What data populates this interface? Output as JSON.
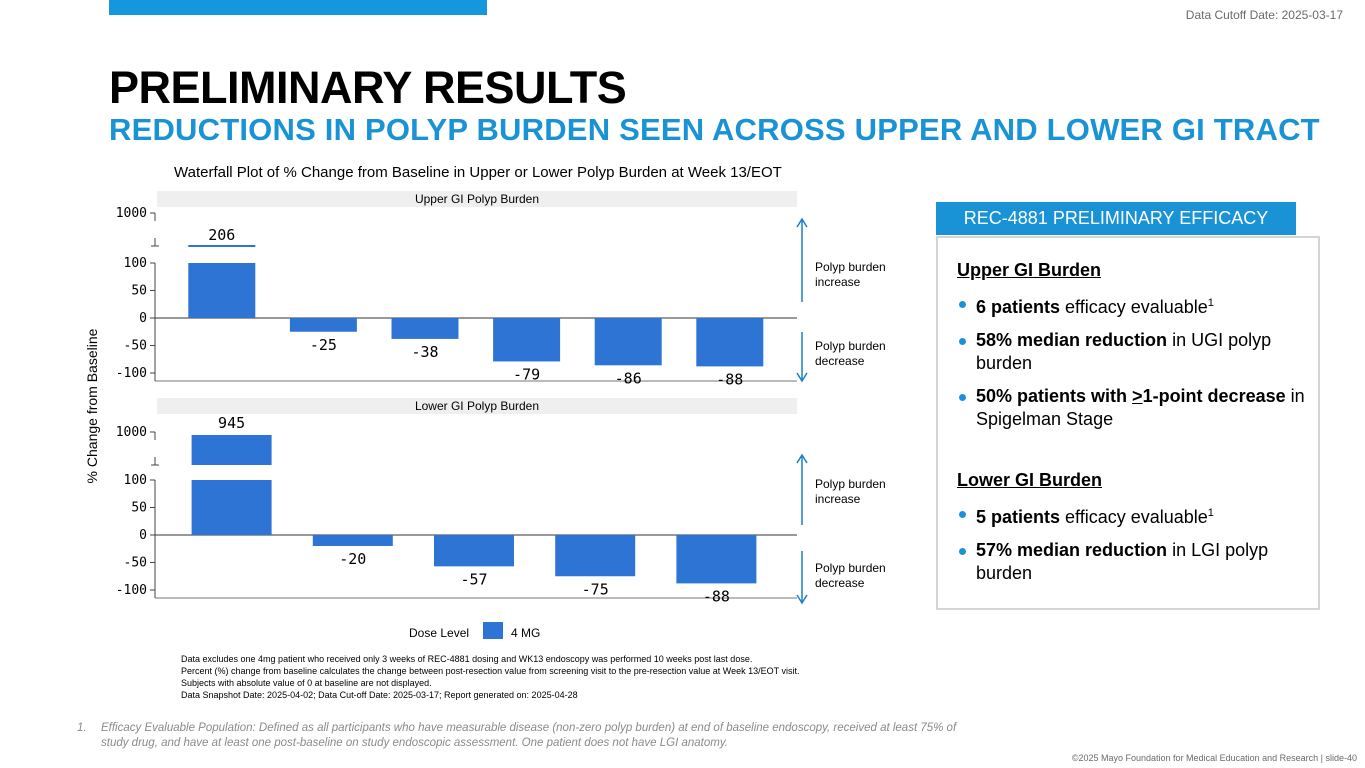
{
  "header": {
    "cutoff": "Data Cutoff Date: 2025-03-17",
    "title": "PRELIMINARY RESULTS",
    "subtitle": "REDUCTIONS IN POLYP BURDEN SEEN ACROSS UPPER AND LOWER GI TRACT"
  },
  "colors": {
    "accent": "#1a93d6",
    "bar": "#2e74d4",
    "arrow": "#1a7fc6"
  },
  "chart_data": [
    {
      "type": "bar",
      "title": "Waterfall Plot of % Change from Baseline in Upper or Lower Polyp Burden at Week 13/EOT",
      "panel": "Upper GI Polyp Burden",
      "ylabel": "% Change from Baseline",
      "yticks": [
        1000,
        100,
        50,
        0,
        -50,
        -100
      ],
      "ylim": [
        -100,
        1000
      ],
      "axis_break": [
        100,
        1000
      ],
      "values": [
        206,
        -25,
        -38,
        -79,
        -86,
        -88
      ],
      "labels": [
        "206",
        "-25",
        "-38",
        "-79",
        "-86",
        "-88"
      ],
      "series_name": "4 MG"
    },
    {
      "type": "bar",
      "panel": "Lower GI Polyp Burden",
      "ylabel": "% Change from Baseline",
      "yticks": [
        1000,
        100,
        50,
        0,
        -50,
        -100
      ],
      "ylim": [
        -100,
        1000
      ],
      "axis_break": [
        100,
        1000
      ],
      "values": [
        945,
        -20,
        -57,
        -75,
        -88
      ],
      "labels": [
        "945",
        "-20",
        "-57",
        "-75",
        "-88"
      ],
      "series_name": "4 MG"
    }
  ],
  "chart_text": {
    "ylabel": "% Change from Baseline",
    "increase_line1": "Polyp burden",
    "increase_line2": "increase",
    "decrease_line1": "Polyp burden",
    "decrease_line2": "decrease",
    "legend_title": "Dose Level",
    "legend_label": "4 MG",
    "tick_labels": [
      "1000",
      "100",
      "50",
      "0",
      "-50",
      "-100"
    ]
  },
  "notes": [
    "Data excludes one 4mg patient who received only 3 weeks of REC-4881 dosing and WK13 endoscopy was performed 10 weeks post last dose.",
    "Percent (%) change from baseline calculates the change between post-resection value from screening visit to the pre-resection value at Week 13/EOT visit. Subjects with absolute value of 0 at baseline are not displayed.",
    "Data Snapshot Date: 2025-04-02; Data Cut-off Date: 2025-03-17; Report generated on: 2025-04-28"
  ],
  "efficacy": {
    "header": "REC-4881 PRELIMINARY EFFICACY",
    "upper": {
      "title": "Upper GI Burden",
      "item1_bold": "6 patients",
      "item1_rest": " efficacy evaluable",
      "item1_sup": "1",
      "item2_bold": "58% median reduction",
      "item2_rest": " in UGI polyp burden",
      "item3_bold_a": "50% patients with ",
      "item3_bold_u": ">",
      "item3_bold_b": "1-point decrease",
      "item3_rest": " in Spigelman Stage"
    },
    "lower": {
      "title": "Lower GI Burden",
      "item1_bold": "5 patients",
      "item1_rest": " efficacy evaluable",
      "item1_sup": "1",
      "item2_bold": "57% median reduction",
      "item2_rest": " in LGI polyp burden"
    }
  },
  "footnote": {
    "num": "1.",
    "text": "Efficacy Evaluable Population: Defined as all participants who have measurable disease (non-zero polyp burden) at end of baseline endoscopy, received at least 75% of study drug, and have at least one post-baseline on study endoscopic assessment. One patient does not have LGI anatomy."
  },
  "copyright": "©2025 Mayo Foundation for Medical Education and Research  |  slide-40"
}
